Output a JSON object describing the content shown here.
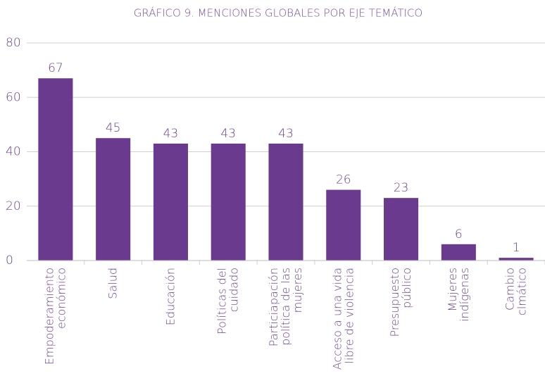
{
  "chart_data": {
    "type": "bar",
    "title": "GRÁFICO 9. MENCIONES GLOBALES POR EJE TEMÁTICO",
    "categories": [
      "Empoderamiento\neconómico",
      "Salud",
      "Educación",
      "Políticas del\ncuidado",
      "Particiapación\npolítica de las\nmujeres",
      "Acceso a una vida\nlibre de violencia",
      "Presupuesto\npúblico",
      "Mujeres\nindígenas",
      "Cambio\nclmático"
    ],
    "values": [
      67,
      45,
      43,
      43,
      43,
      26,
      23,
      6,
      1
    ],
    "color": "#6a3a8e",
    "ylim": [
      0,
      80
    ],
    "yticks": [
      0,
      20,
      40,
      60,
      80
    ],
    "grid": true
  }
}
